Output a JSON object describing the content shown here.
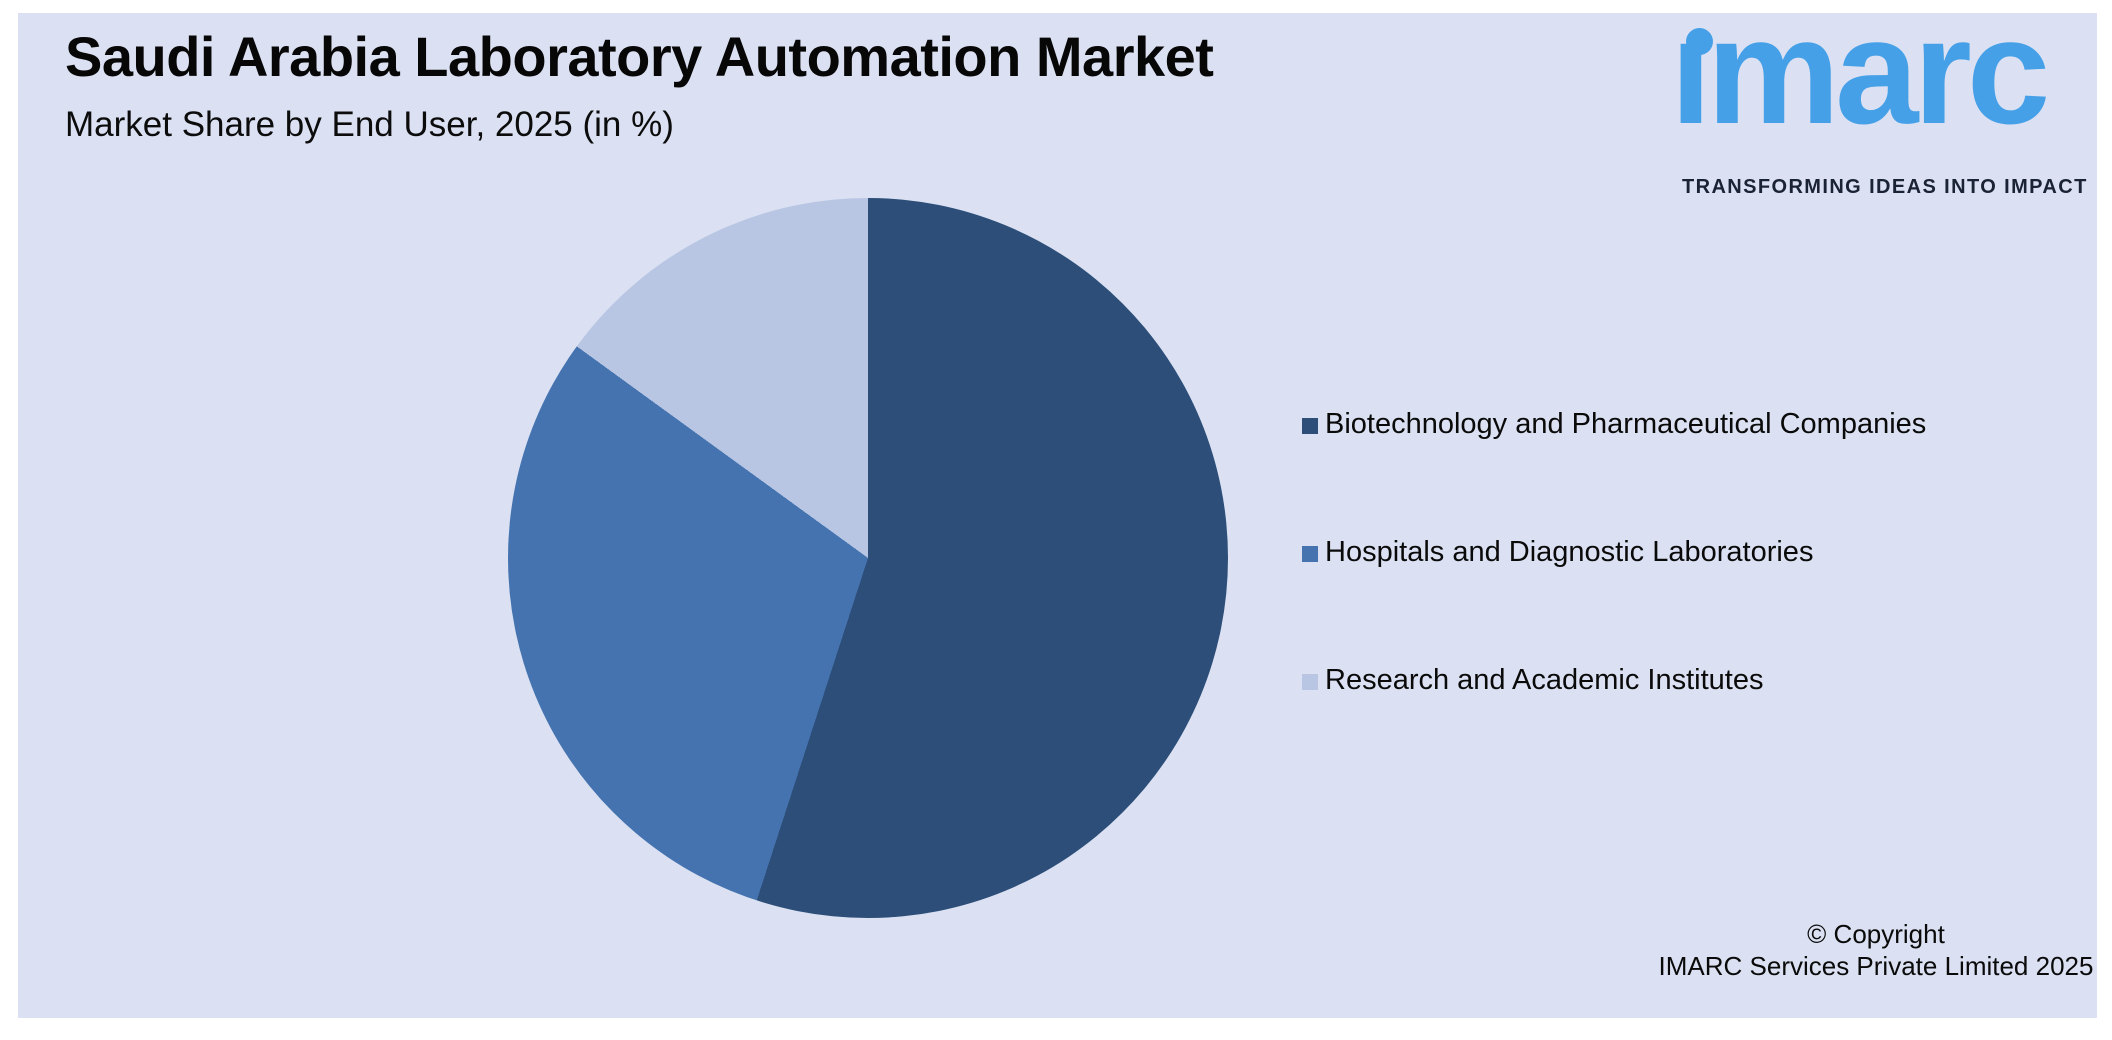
{
  "header": {
    "title": "Saudi Arabia Laboratory Automation Market",
    "subtitle": "Market Share by End User, 2025 (in %)"
  },
  "logo": {
    "wordmark": "imarc",
    "tagline": "TRANSFORMING IDEAS INTO IMPACT",
    "brand_color": "#45A0E8"
  },
  "chart_data": {
    "type": "pie",
    "title": "Saudi Arabia Laboratory Automation Market",
    "subtitle": "Market Share by End User, 2025 (in %)",
    "categories": [
      "Biotechnology and Pharmaceutical Companies",
      "Hospitals and Diagnostic Laboratories",
      "Research and Academic Institutes"
    ],
    "values": [
      55,
      30,
      15
    ],
    "colors": [
      "#2C4E78",
      "#4473B0",
      "#B8C6E4"
    ],
    "start_angle_deg": 0,
    "direction": "clockwise",
    "legend_position": "right",
    "data_labels": false
  },
  "legend": {
    "items": [
      {
        "label": "Biotechnology and Pharmaceutical Companies",
        "color": "#2C4E78"
      },
      {
        "label": "Hospitals and Diagnostic Laboratories",
        "color": "#4473B0"
      },
      {
        "label": "Research and Academic Institutes",
        "color": "#B8C6E4"
      }
    ]
  },
  "footer": {
    "copyright_line1": "© Copyright",
    "copyright_line2": "IMARC Services Private Limited 2025"
  },
  "colors": {
    "page_background": "#FFFFFF",
    "panel_background": "#DBE1F2",
    "text": "#0A0A0A"
  }
}
